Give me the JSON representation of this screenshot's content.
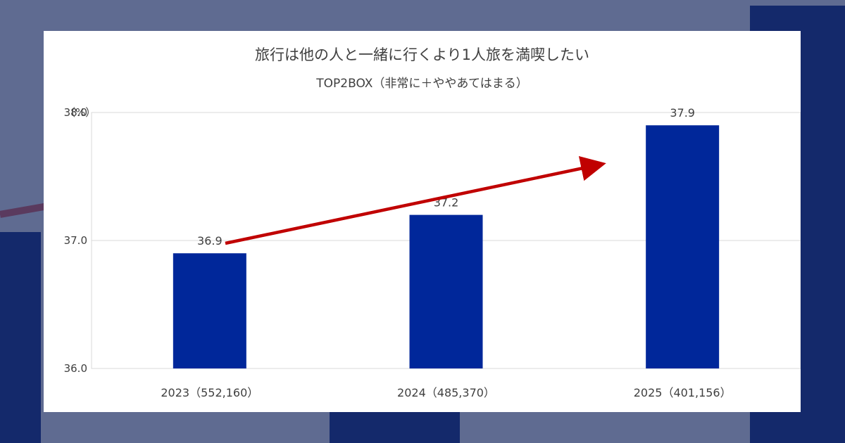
{
  "chart_data": {
    "type": "bar",
    "title": "旅行は他の人と一緒に行くより1人旅を満喫したい",
    "subtitle": "TOP2BOX（非常に＋ややあてはまる）",
    "unit": "（%）",
    "categories": [
      "2023（552,160）",
      "2024（485,370）",
      "2025（401,156）"
    ],
    "values": [
      36.9,
      37.2,
      37.9
    ],
    "data_labels": [
      "36.9",
      "37.2",
      "37.9"
    ],
    "yticks": [
      "36.0",
      "37.0",
      "38.0"
    ],
    "ylim": [
      36.0,
      38.0
    ],
    "grid": true,
    "bar_color": "#00279a",
    "arrow_color": "#c00000"
  }
}
